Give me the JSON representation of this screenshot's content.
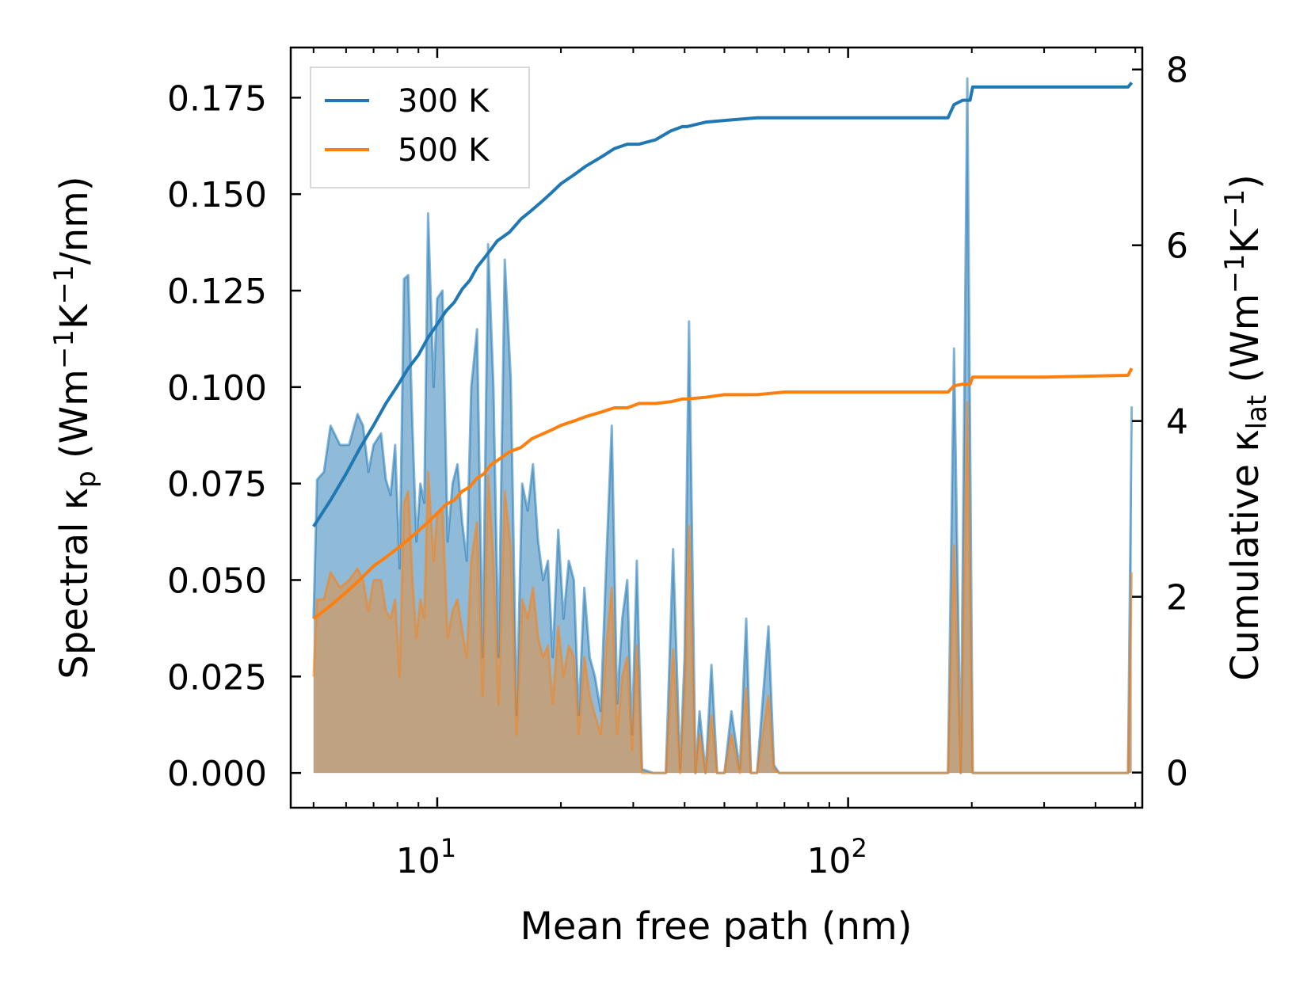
{
  "chart_data": {
    "type": "line",
    "title": "",
    "xlabel": "Mean free path (nm)",
    "xscale": "log",
    "xlim": [
      4.4,
      520
    ],
    "x_major_ticks": [
      10,
      100
    ],
    "x_tick_labels": [
      {
        "base": "10",
        "exp": "1"
      },
      {
        "base": "10",
        "exp": "2"
      }
    ],
    "y_left": {
      "label": "Spectral κp (Wm−1K−1/nm)",
      "label_parts": {
        "pre": "Spectral κ",
        "sub": "p",
        "open": " (Wm",
        "sup1": "−1",
        "mid": "K",
        "sup2": "−1",
        "post": "/nm)"
      },
      "lim": [
        -0.009,
        0.188
      ],
      "ticks": [
        0.0,
        0.025,
        0.05,
        0.075,
        0.1,
        0.125,
        0.15,
        0.175
      ],
      "tick_labels": [
        "0.000",
        "0.025",
        "0.050",
        "0.075",
        "0.100",
        "0.125",
        "0.150",
        "0.175"
      ]
    },
    "y_right": {
      "label": "Cumulative κlat (Wm−1K−1)",
      "label_parts": {
        "pre": "Cumulative κ",
        "sub": "lat",
        "open": " (Wm",
        "sup1": "−1",
        "mid": "K",
        "sup2": "−1",
        "post": ")"
      },
      "lim": [
        -0.4,
        8.25
      ],
      "ticks": [
        0,
        2,
        4,
        6,
        8
      ],
      "tick_labels": [
        "0",
        "2",
        "4",
        "6",
        "8"
      ]
    },
    "legend": {
      "placement": "top-left"
    },
    "series": [
      {
        "name": "300 K",
        "color": "#1f77b4",
        "fill_color": "#1f77b4",
        "spectral": {
          "x": [
            5.0,
            5.1,
            5.3,
            5.5,
            5.8,
            6.1,
            6.4,
            6.6,
            6.8,
            7.0,
            7.3,
            7.5,
            7.7,
            7.9,
            8.1,
            8.3,
            8.5,
            8.7,
            8.9,
            9.1,
            9.3,
            9.5,
            9.8,
            10.0,
            10.3,
            10.6,
            10.9,
            11.2,
            11.5,
            11.8,
            12.1,
            12.5,
            12.9,
            13.3,
            13.7,
            14.1,
            14.6,
            15.1,
            15.6,
            16.1,
            16.6,
            17.1,
            17.6,
            18.1,
            18.6,
            19.1,
            19.7,
            20.3,
            20.9,
            21.5,
            22.1,
            22.8,
            23.5,
            24.2,
            25.0,
            25.8,
            26.6,
            27.4,
            28.2,
            29.0,
            29.8,
            30.6,
            31.5,
            33.5,
            36.0,
            37.5,
            39.0,
            40.0,
            41.0,
            42.5,
            43.5,
            45.0,
            46.5,
            48.0,
            50.0,
            52.0,
            54.5,
            56.5,
            58.0,
            60.0,
            64.0,
            66.0,
            68.0,
            70.0,
            175.0,
            181.0,
            188.0,
            195.0,
            201.0,
            205.0,
            208.0,
            480.0,
            490.0
          ],
          "values": [
            0.04,
            0.076,
            0.078,
            0.09,
            0.085,
            0.085,
            0.093,
            0.09,
            0.078,
            0.085,
            0.088,
            0.076,
            0.072,
            0.085,
            0.053,
            0.128,
            0.129,
            0.09,
            0.06,
            0.075,
            0.07,
            0.145,
            0.1,
            0.123,
            0.125,
            0.06,
            0.075,
            0.08,
            0.065,
            0.055,
            0.1,
            0.115,
            0.03,
            0.137,
            0.1,
            0.03,
            0.133,
            0.102,
            0.015,
            0.075,
            0.068,
            0.08,
            0.06,
            0.05,
            0.055,
            0.03,
            0.063,
            0.04,
            0.055,
            0.05,
            0.015,
            0.048,
            0.03,
            0.025,
            0.016,
            0.055,
            0.09,
            0.018,
            0.04,
            0.05,
            0.01,
            0.055,
            0.001,
            0.0,
            0.0,
            0.058,
            0.001,
            0.03,
            0.117,
            0.0,
            0.016,
            0.0,
            0.028,
            0.0,
            0.0,
            0.016,
            0.001,
            0.04,
            0.0,
            0.0,
            0.038,
            0.002,
            0.0,
            0.0,
            0.0,
            0.11,
            0.0,
            0.18,
            0.0,
            0.0,
            0.0,
            0.0,
            0.095
          ]
        },
        "cumulative": {
          "x": [
            5.0,
            5.5,
            6.0,
            6.5,
            7.0,
            7.5,
            8.0,
            8.5,
            9.0,
            9.5,
            10.0,
            10.5,
            11.0,
            11.5,
            12.0,
            12.5,
            13.0,
            13.5,
            14.0,
            15.0,
            16.0,
            17.0,
            18.0,
            19.0,
            20.0,
            21.5,
            23.0,
            25.0,
            27.0,
            29.0,
            31.0,
            34.0,
            37.0,
            39.5,
            40.5,
            45.0,
            50.0,
            60.0,
            70.0,
            80.0,
            100.0,
            150.0,
            175.0,
            181.0,
            190.0,
            198.0,
            201.0,
            205.0,
            208.0,
            300.0,
            480.0,
            490.0
          ],
          "values": [
            2.8,
            3.1,
            3.4,
            3.7,
            3.95,
            4.2,
            4.4,
            4.6,
            4.75,
            4.95,
            5.1,
            5.25,
            5.35,
            5.5,
            5.6,
            5.75,
            5.85,
            5.95,
            6.05,
            6.15,
            6.3,
            6.4,
            6.5,
            6.6,
            6.7,
            6.8,
            6.9,
            7.0,
            7.1,
            7.15,
            7.15,
            7.2,
            7.3,
            7.35,
            7.35,
            7.4,
            7.42,
            7.45,
            7.45,
            7.45,
            7.45,
            7.45,
            7.45,
            7.6,
            7.65,
            7.65,
            7.8,
            7.8,
            7.8,
            7.8,
            7.8,
            7.85
          ]
        }
      },
      {
        "name": "500 K",
        "color": "#ff7f0e",
        "fill_color": "#f08a2a",
        "spectral": {
          "x": [
            5.0,
            5.1,
            5.3,
            5.5,
            5.8,
            6.1,
            6.4,
            6.6,
            6.8,
            7.0,
            7.3,
            7.5,
            7.7,
            7.9,
            8.1,
            8.3,
            8.5,
            8.7,
            8.9,
            9.1,
            9.3,
            9.5,
            9.8,
            10.0,
            10.3,
            10.6,
            10.9,
            11.2,
            11.5,
            11.8,
            12.1,
            12.5,
            12.9,
            13.3,
            13.7,
            14.1,
            14.6,
            15.1,
            15.6,
            16.1,
            16.6,
            17.1,
            17.6,
            18.1,
            18.6,
            19.1,
            19.7,
            20.3,
            20.9,
            21.5,
            22.1,
            22.8,
            23.5,
            24.2,
            25.0,
            25.8,
            26.6,
            27.4,
            28.2,
            29.0,
            29.8,
            30.6,
            31.5,
            33.5,
            36.0,
            37.5,
            39.0,
            40.0,
            41.0,
            42.5,
            43.5,
            45.0,
            46.5,
            48.0,
            50.0,
            52.0,
            54.5,
            56.5,
            58.0,
            60.0,
            64.0,
            66.0,
            68.0,
            70.0,
            175.0,
            181.0,
            188.0,
            195.0,
            201.0,
            205.0,
            208.0,
            480.0,
            490.0
          ],
          "values": [
            0.025,
            0.045,
            0.045,
            0.052,
            0.048,
            0.05,
            0.053,
            0.05,
            0.042,
            0.05,
            0.05,
            0.042,
            0.04,
            0.045,
            0.025,
            0.07,
            0.073,
            0.05,
            0.035,
            0.045,
            0.04,
            0.078,
            0.055,
            0.067,
            0.068,
            0.035,
            0.042,
            0.045,
            0.037,
            0.03,
            0.055,
            0.065,
            0.02,
            0.077,
            0.055,
            0.018,
            0.073,
            0.058,
            0.01,
            0.045,
            0.04,
            0.048,
            0.035,
            0.03,
            0.033,
            0.018,
            0.038,
            0.025,
            0.033,
            0.03,
            0.01,
            0.03,
            0.02,
            0.015,
            0.01,
            0.033,
            0.048,
            0.01,
            0.025,
            0.03,
            0.006,
            0.033,
            0.0,
            0.0,
            0.0,
            0.032,
            0.0,
            0.02,
            0.064,
            0.0,
            0.01,
            0.0,
            0.015,
            0.0,
            0.0,
            0.01,
            0.0,
            0.022,
            0.0,
            0.0,
            0.02,
            0.001,
            0.0,
            0.0,
            0.0,
            0.059,
            0.0,
            0.096,
            0.0,
            0.0,
            0.0,
            0.0,
            0.052
          ]
        },
        "cumulative": {
          "x": [
            5.0,
            5.5,
            6.0,
            6.5,
            7.0,
            7.5,
            8.0,
            8.5,
            9.0,
            9.5,
            10.0,
            10.5,
            11.0,
            11.5,
            12.0,
            12.5,
            13.0,
            13.5,
            14.0,
            15.0,
            16.0,
            17.0,
            18.0,
            19.0,
            20.0,
            21.5,
            23.0,
            25.0,
            27.0,
            29.0,
            31.0,
            34.0,
            37.0,
            39.5,
            40.5,
            45.0,
            50.0,
            60.0,
            70.0,
            80.0,
            100.0,
            150.0,
            175.0,
            181.0,
            190.0,
            198.0,
            201.0,
            205.0,
            208.0,
            300.0,
            480.0,
            490.0
          ],
          "values": [
            1.75,
            1.9,
            2.05,
            2.2,
            2.35,
            2.45,
            2.55,
            2.65,
            2.75,
            2.85,
            2.95,
            3.05,
            3.1,
            3.2,
            3.25,
            3.35,
            3.4,
            3.5,
            3.55,
            3.65,
            3.7,
            3.8,
            3.85,
            3.9,
            3.95,
            4.0,
            4.05,
            4.1,
            4.15,
            4.15,
            4.2,
            4.2,
            4.22,
            4.25,
            4.25,
            4.27,
            4.3,
            4.3,
            4.33,
            4.33,
            4.33,
            4.33,
            4.33,
            4.4,
            4.42,
            4.42,
            4.5,
            4.5,
            4.5,
            4.5,
            4.52,
            4.6
          ]
        }
      }
    ]
  }
}
